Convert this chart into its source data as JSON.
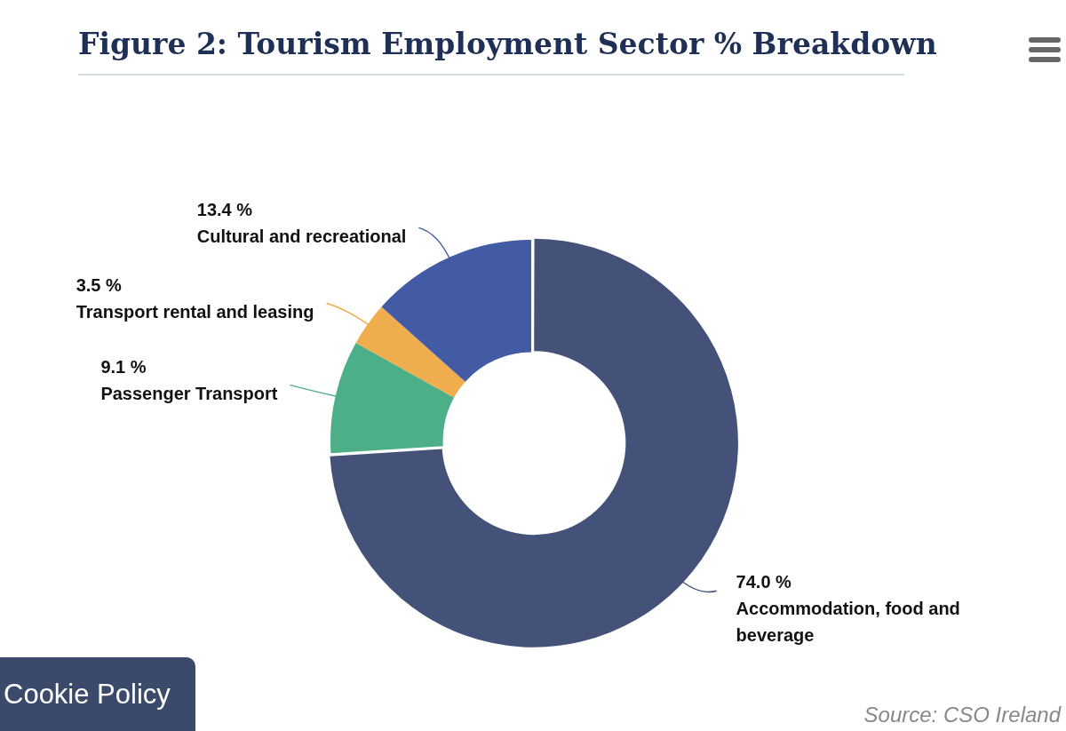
{
  "chart_data": {
    "type": "donut",
    "title": "Figure 2: Tourism Employment Sector % Breakdown",
    "categories": [
      "Accommodation, food and beverage",
      "Passenger Transport",
      "Transport rental and leasing",
      "Cultural and recreational"
    ],
    "values": [
      74.0,
      9.1,
      3.5,
      13.4
    ],
    "value_labels": [
      "74.0 %",
      "9.1 %",
      "3.5 %",
      "13.4 %"
    ],
    "colors": [
      "#44527a",
      "#4caf87",
      "#f0ad4e",
      "#435ba5"
    ],
    "legend": false,
    "annotations": [
      "Source: CSO Ireland",
      "Cookie Policy"
    ]
  }
}
